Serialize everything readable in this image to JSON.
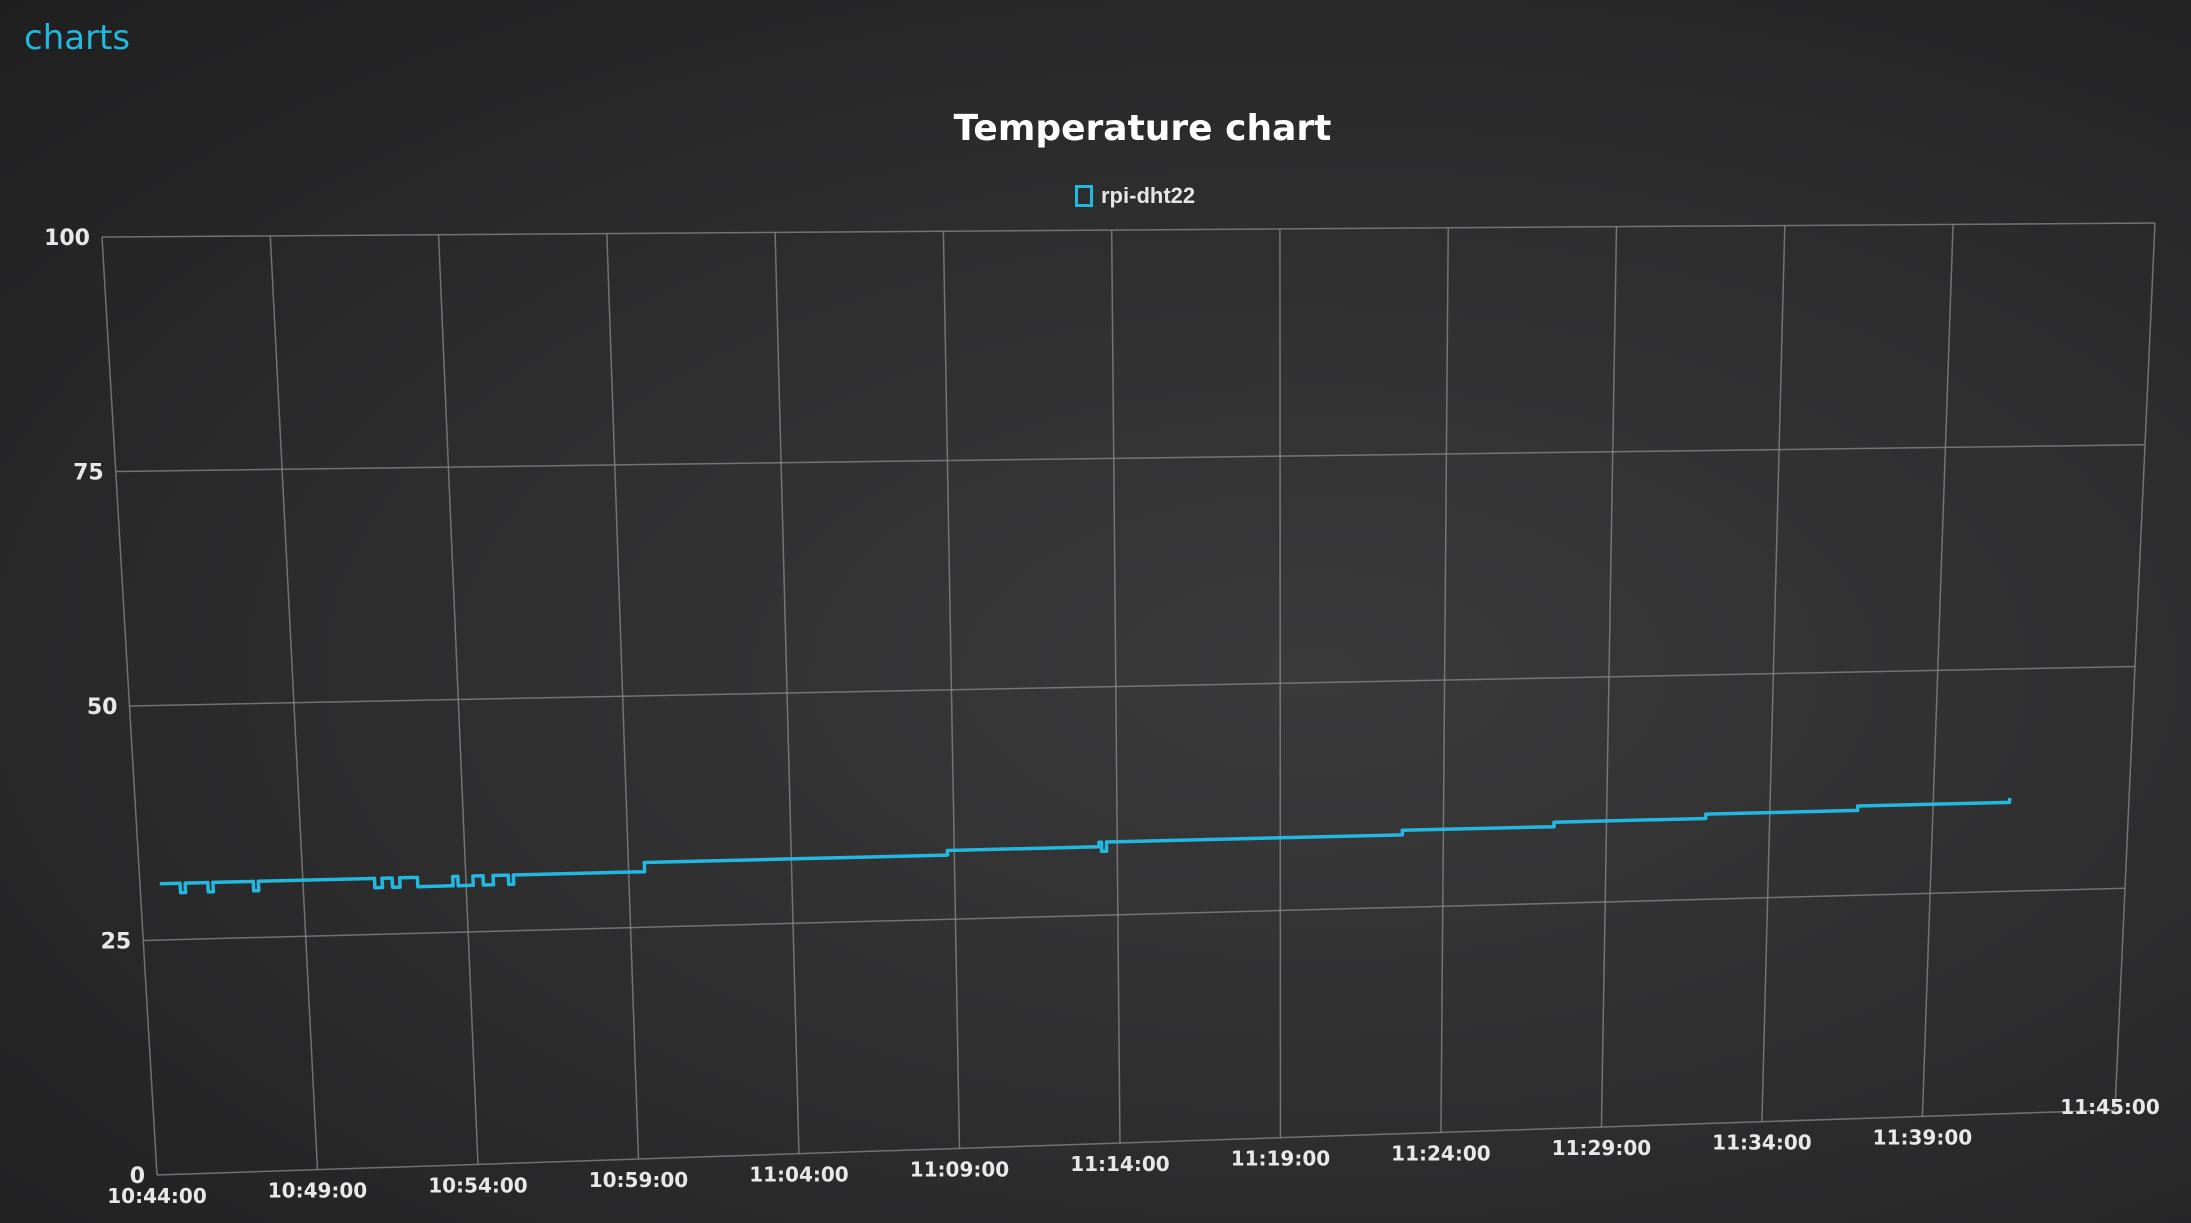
{
  "app": {
    "tab_title": "charts"
  },
  "colors": {
    "background": "#2b2b2c",
    "accent": "#22b8e0",
    "grid": "#8a8a8a",
    "text": "#e8e8e8"
  },
  "chart_data": {
    "type": "line",
    "title": "Temperature chart",
    "xlabel": "",
    "ylabel": "",
    "ylim": [
      0,
      100
    ],
    "yticks": [
      0,
      25,
      50,
      75,
      100
    ],
    "xticks": [
      "10:44:00",
      "10:49:00",
      "10:54:00",
      "10:59:00",
      "11:04:00",
      "11:09:00",
      "11:14:00",
      "11:19:00",
      "11:24:00",
      "11:29:00",
      "11:34:00",
      "11:39:00",
      "11:45:00"
    ],
    "grid": true,
    "legend": "top-center",
    "series": [
      {
        "name": "rpi-dht22",
        "color": "#22b8e0",
        "points": [
          [
            "10:44:00",
            31
          ],
          [
            "10:44:30",
            31
          ],
          [
            "10:44:40",
            30
          ],
          [
            "10:44:50",
            31
          ],
          [
            "10:45:30",
            31
          ],
          [
            "10:45:35",
            30
          ],
          [
            "10:45:45",
            31
          ],
          [
            "10:47:00",
            31
          ],
          [
            "10:47:05",
            30
          ],
          [
            "10:47:15",
            31
          ],
          [
            "10:51:00",
            31
          ],
          [
            "10:51:05",
            30
          ],
          [
            "10:51:20",
            31
          ],
          [
            "10:51:40",
            30
          ],
          [
            "10:51:55",
            31
          ],
          [
            "10:52:20",
            31
          ],
          [
            "10:52:30",
            30
          ],
          [
            "10:53:30",
            30
          ],
          [
            "10:53:40",
            31
          ],
          [
            "10:53:50",
            30
          ],
          [
            "10:54:20",
            31
          ],
          [
            "10:54:40",
            30
          ],
          [
            "10:55:00",
            31
          ],
          [
            "10:55:30",
            30
          ],
          [
            "10:55:40",
            31
          ],
          [
            "11:00:00",
            32
          ],
          [
            "11:05:00",
            32
          ],
          [
            "11:10:00",
            32.5
          ],
          [
            "11:15:00",
            33
          ],
          [
            "11:15:05",
            32
          ],
          [
            "11:15:15",
            33
          ],
          [
            "11:20:00",
            33
          ],
          [
            "11:25:00",
            33.5
          ],
          [
            "11:30:00",
            34
          ],
          [
            "11:35:00",
            34.5
          ],
          [
            "11:40:00",
            35
          ],
          [
            "11:45:00",
            35.5
          ]
        ]
      }
    ]
  }
}
